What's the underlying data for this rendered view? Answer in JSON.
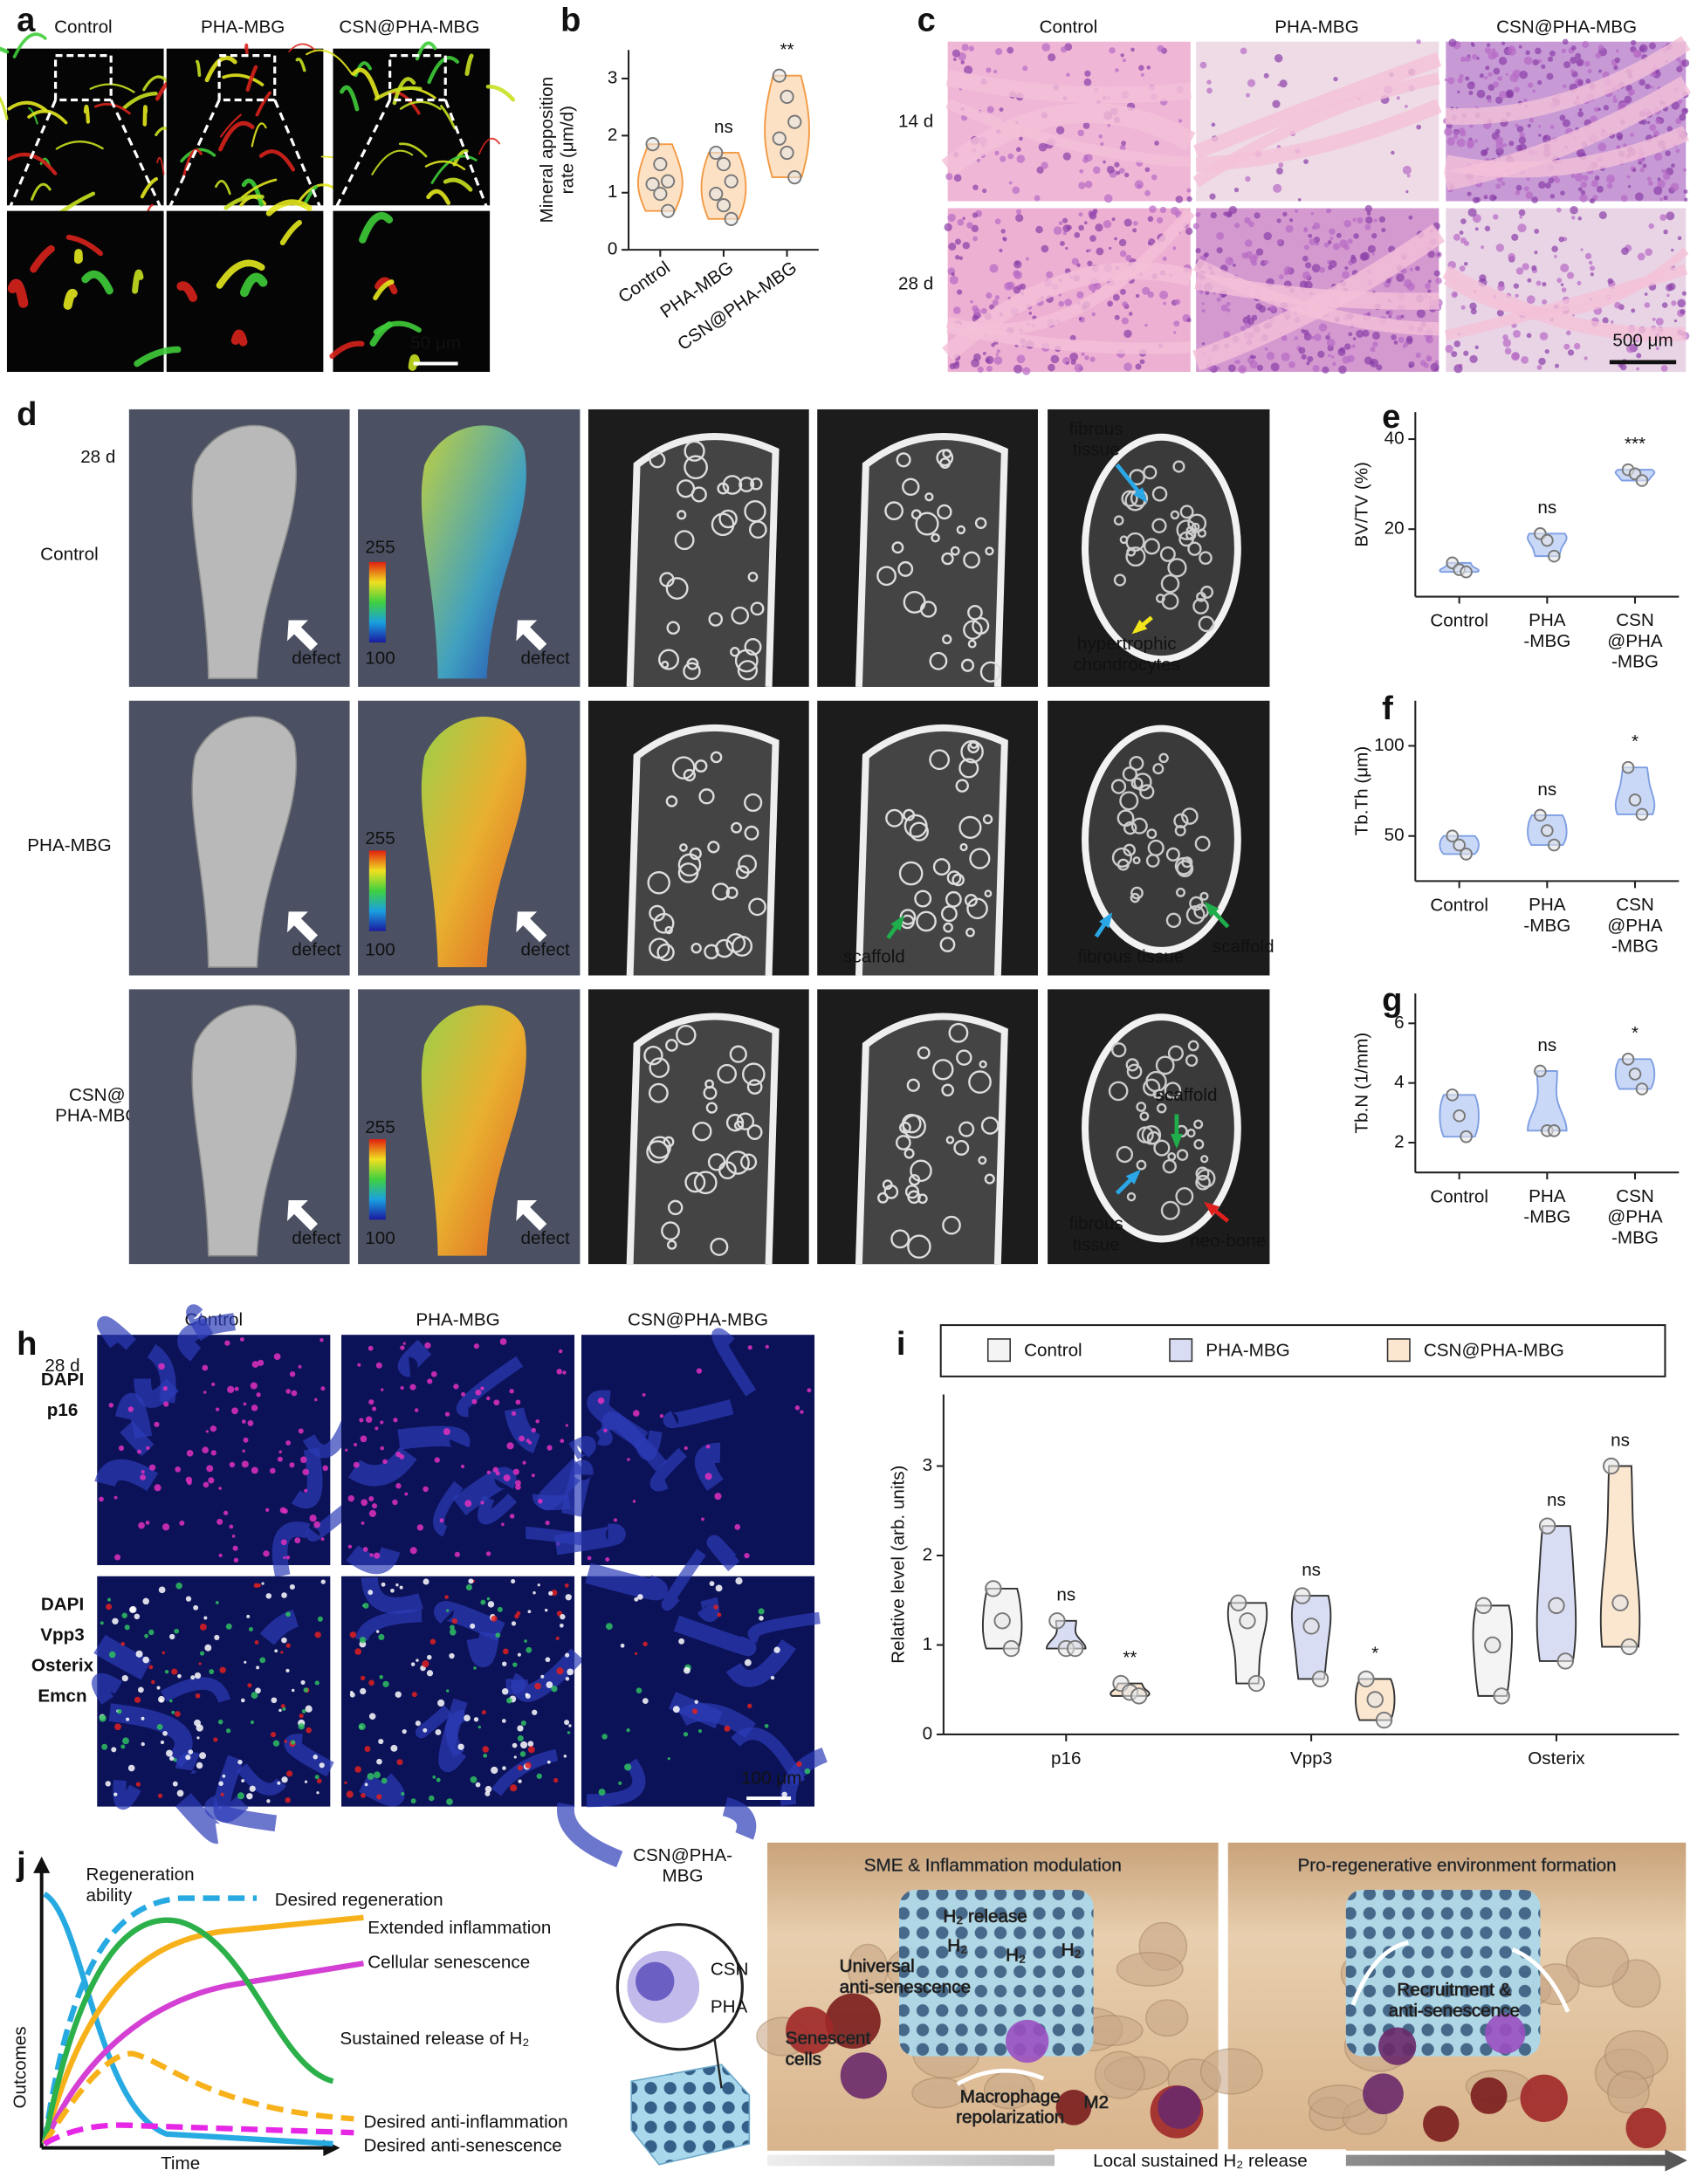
{
  "panel_labels": [
    "a",
    "b",
    "c",
    "d",
    "e",
    "f",
    "g",
    "h",
    "i",
    "j"
  ],
  "a": {
    "columns": [
      "Control",
      "PHA-MBG",
      "CSN@PHA-MBG"
    ],
    "scale_bar": "50 μm"
  },
  "c": {
    "columns": [
      "Control",
      "PHA-MBG",
      "CSN@PHA-MBG"
    ],
    "rows": [
      "14 d",
      "28 d"
    ],
    "scale_bar": "500 μm"
  },
  "d": {
    "timepoint": "28 d",
    "rows": [
      "Control",
      "PHA-MBG",
      "CSN@\nPHA-MBG"
    ],
    "colorbar_max": "255",
    "colorbar_min": "100",
    "defect": "defect",
    "annotations": [
      {
        "text": "fibrous\ntissue",
        "color": "#2aa7e6"
      },
      {
        "text": "hypertrophic\nchondrocytes",
        "color": "#f2e41c"
      },
      {
        "text": "scaffold",
        "color": "#1fae4b"
      },
      {
        "text": "fibrous tissue",
        "color": "#2aa7e6"
      },
      {
        "text": "scaffold",
        "color": "#1fae4b"
      },
      {
        "text": "scaffold",
        "color": "#1fae4b"
      },
      {
        "text": "fibrous\ntissue",
        "color": "#2aa7e6"
      },
      {
        "text": "neo-bone",
        "color": "#e0201c"
      }
    ]
  },
  "h": {
    "columns": [
      "Control",
      "PHA-MBG",
      "CSN@PHA-MBG"
    ],
    "timepoint": "28 d",
    "stains": [
      [
        {
          "text": "DAPI",
          "color": "#1f3cf0"
        },
        {
          "text": "p16",
          "color": "#e01818"
        }
      ],
      [
        {
          "text": "DAPI",
          "color": "#1f3cf0"
        },
        {
          "text": "Vpp3",
          "color": "#e01818"
        },
        {
          "text": "Osterix",
          "color": "#e4e4e4"
        },
        {
          "text": "Emcn",
          "color": "#1fae4b"
        }
      ]
    ],
    "scale_bar": "100 μm"
  },
  "j": {
    "curves": [
      {
        "text": "Regeneration\nability",
        "color": "#27a9e1",
        "dash": false
      },
      {
        "text": "Desired regeneration",
        "color": "#27a9e1",
        "dash": true
      },
      {
        "text": "Extended inflammation",
        "color": "#f7b21b",
        "dash": false
      },
      {
        "text": "Cellular senescence",
        "color": "#d43fd4",
        "dash": false
      },
      {
        "text": "Sustained release of H₂",
        "color": "#2bb04a",
        "dash": false
      },
      {
        "text": "Desired anti-inflammation",
        "color": "#f7b21b",
        "dash": true
      },
      {
        "text": "Desired anti-senescence",
        "color": "#e628e6",
        "dash": true
      }
    ],
    "y_axis": "Outcomes",
    "x_axis": "Time",
    "scaffold_label": "CSN@PHA-\nMBG",
    "core": "CSN",
    "shell": "PHA",
    "stage1": {
      "title": "SME & Inflammation modulation",
      "labels": [
        "Universal\nanti-senescence",
        "H₂ release",
        "H₂",
        "H₂",
        "H₂",
        "Senescent\ncells",
        "Macrophage\nrepolarization",
        "M2"
      ]
    },
    "stage2": {
      "title": "Pro-regenerative environment formation",
      "labels": [
        "Recruitment &\nanti-senescence"
      ]
    },
    "bottom_arrow": "Local sustained H₂ release"
  },
  "chart_data": [
    {
      "type": "violin",
      "ylabel": "Mineral apposition\nrate (μm/d)",
      "categories": [
        "Control",
        "PHA-MBG",
        "CSN@PHA-MBG"
      ],
      "ylim": [
        0,
        3.5
      ],
      "yticks": [
        0,
        1,
        2,
        3
      ],
      "series": [
        {
          "color": "#f39a45",
          "fill": "#fde1c4",
          "values": [
            [
              1.85,
              1.5,
              1.2,
              1.15,
              0.98,
              0.68
            ],
            [
              1.7,
              1.5,
              1.2,
              0.98,
              0.78,
              0.54
            ],
            [
              3.05,
              2.68,
              2.24,
              1.95,
              1.7,
              1.27
            ]
          ],
          "annotations": [
            null,
            "ns",
            "**"
          ]
        }
      ]
    },
    {
      "type": "violin",
      "ylabel": "BV/TV (%)",
      "categories": [
        "Control",
        "PHA\n-MBG",
        "CSN\n@PHA\n-MBG"
      ],
      "ylim": [
        5,
        46
      ],
      "yticks": [
        20,
        40
      ],
      "series": [
        {
          "color": "#7f9fe3",
          "fill": "#c9d8f7",
          "values": [
            [
              12.5,
              11,
              10.5
            ],
            [
              19,
              17.5,
              14
            ],
            [
              33.2,
              32.3,
              30.8
            ]
          ],
          "annotations": [
            null,
            "ns",
            "***"
          ]
        }
      ]
    },
    {
      "type": "violin",
      "ylabel": "Tb.Th (μm)",
      "categories": [
        "Control",
        "PHA\n-MBG",
        "CSN\n@PHA\n-MBG"
      ],
      "ylim": [
        25,
        125
      ],
      "yticks": [
        50,
        100
      ],
      "series": [
        {
          "color": "#7f9fe3",
          "fill": "#c9d8f7",
          "values": [
            [
              50,
              45,
              40
            ],
            [
              61.5,
              53,
              45
            ],
            [
              88,
              70,
              62
            ]
          ],
          "annotations": [
            null,
            "ns",
            "*"
          ]
        }
      ]
    },
    {
      "type": "violin",
      "ylabel": "Tb.N (1/mm)",
      "categories": [
        "Control",
        "PHA\n-MBG",
        "CSN\n@PHA\n-MBG"
      ],
      "ylim": [
        1,
        7
      ],
      "yticks": [
        2,
        4,
        6
      ],
      "series": [
        {
          "color": "#7f9fe3",
          "fill": "#c9d8f7",
          "values": [
            [
              3.6,
              2.9,
              2.2
            ],
            [
              4.4,
              2.4,
              2.4
            ],
            [
              4.8,
              4.3,
              3.8
            ]
          ],
          "annotations": [
            null,
            "ns",
            "*"
          ]
        }
      ]
    },
    {
      "type": "violin",
      "ylabel": "Relative level (arb. units)",
      "categories": [
        "p16",
        "Vpp3",
        "Osterix"
      ],
      "ylim": [
        0,
        3.8
      ],
      "yticks": [
        0,
        1,
        2,
        3
      ],
      "legend": true,
      "series": [
        {
          "name": "Control",
          "color": "#333333",
          "fill": "#f4f4f4",
          "values": [
            [
              1.63,
              1.27,
              0.96
            ],
            [
              1.47,
              1.27,
              0.57
            ],
            [
              1.44,
              1.0,
              0.43
            ]
          ],
          "annotations": [
            null,
            null,
            null
          ]
        },
        {
          "name": "PHA-MBG",
          "color": "#333333",
          "fill": "#d9ddf4",
          "values": [
            [
              1.27,
              0.96,
              0.96
            ],
            [
              1.55,
              1.21,
              0.62
            ],
            [
              2.33,
              1.44,
              0.82
            ]
          ],
          "annotations": [
            "ns",
            "ns",
            "ns"
          ]
        },
        {
          "name": "CSN@PHA-MBG",
          "color": "#333333",
          "fill": "#fbe7cf",
          "values": [
            [
              0.57,
              0.47,
              0.43
            ],
            [
              0.62,
              0.39,
              0.16
            ],
            [
              3.0,
              1.47,
              0.98
            ]
          ],
          "annotations": [
            "**",
            "*",
            "ns"
          ]
        }
      ]
    }
  ]
}
